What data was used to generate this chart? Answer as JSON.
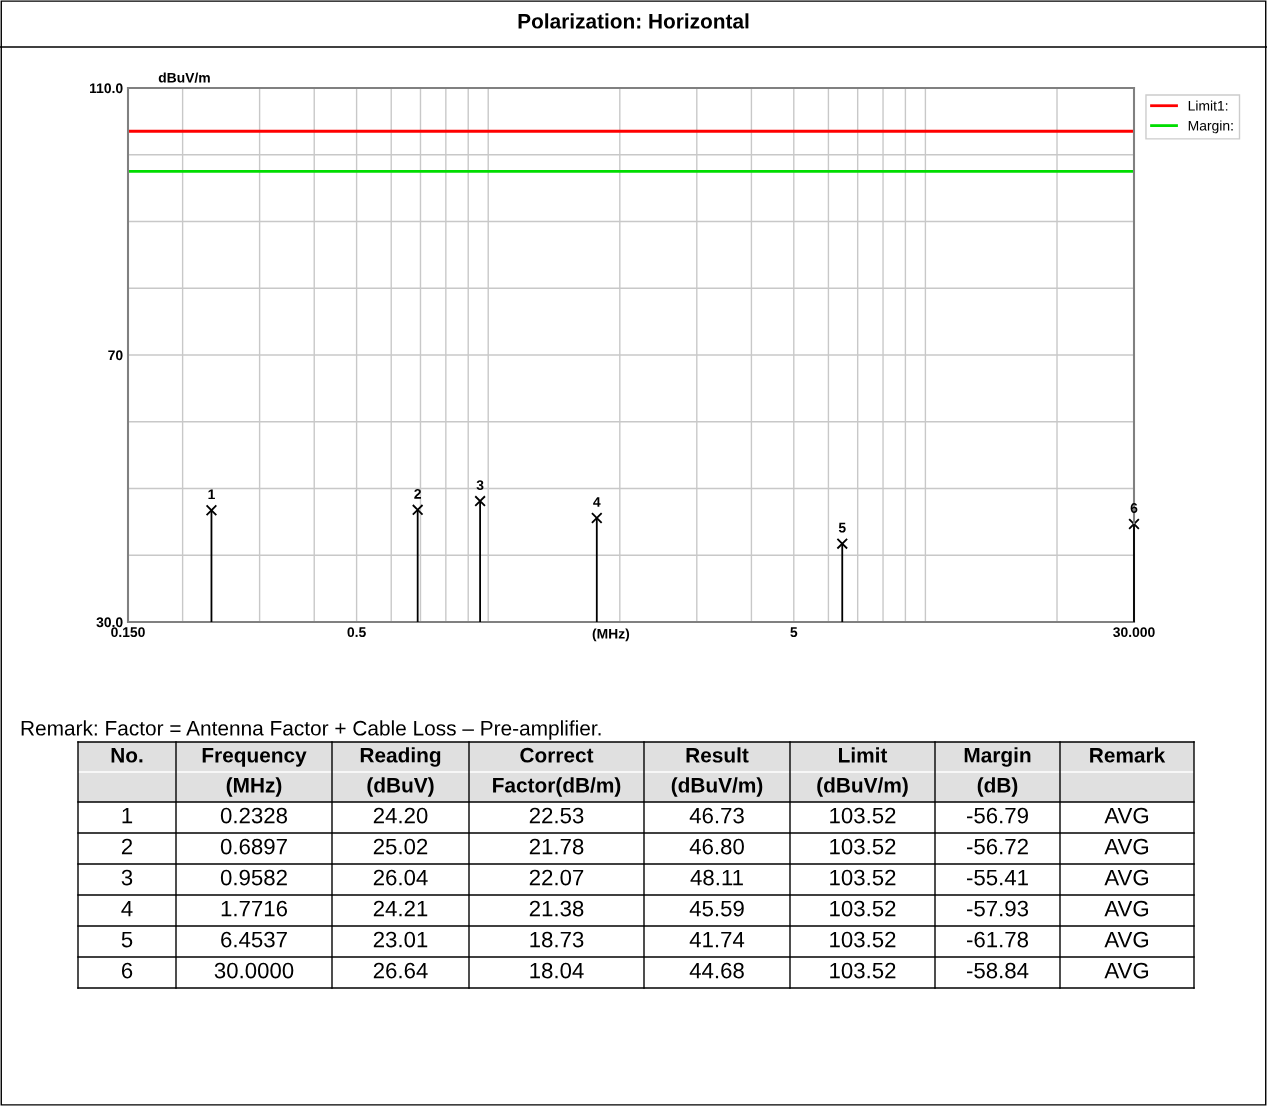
{
  "chart_data": {
    "type": "lollipop",
    "title": "Polarization: Horizontal",
    "ylabel": "dBuV/m",
    "xlabel": "(MHz)",
    "x": [
      0.2328,
      0.6897,
      0.9582,
      1.7716,
      6.4537,
      30.0
    ],
    "values": [
      46.73,
      46.8,
      48.11,
      45.59,
      41.74,
      44.68
    ],
    "color": "#000000",
    "marker": "cross",
    "log": "x",
    "xlim": [
      0.15,
      30
    ],
    "ylim": [
      30,
      110
    ],
    "xticks": [
      {
        "value": 0.15,
        "label": "0.150"
      },
      {
        "value": 0.2,
        "label": null
      },
      {
        "value": 0.3,
        "label": null
      },
      {
        "value": 0.4,
        "label": null
      },
      {
        "value": 0.5,
        "label": "0.5"
      },
      {
        "value": 0.6,
        "label": null
      },
      {
        "value": 0.7,
        "label": null
      },
      {
        "value": 0.8,
        "label": null
      },
      {
        "value": 0.9,
        "label": null
      },
      {
        "value": 1,
        "label": null
      },
      {
        "value": 2,
        "label": null
      },
      {
        "value": 3,
        "label": null
      },
      {
        "value": 4,
        "label": null
      },
      {
        "value": 5,
        "label": "5"
      },
      {
        "value": 6,
        "label": null
      },
      {
        "value": 7,
        "label": null
      },
      {
        "value": 8,
        "label": null
      },
      {
        "value": 9,
        "label": null
      },
      {
        "value": 10,
        "label": null
      },
      {
        "value": 20,
        "label": null
      },
      {
        "value": 30,
        "label": "30.000"
      }
    ],
    "yticks": [
      {
        "value": 30,
        "label": "30.0"
      },
      {
        "value": 40,
        "label": null
      },
      {
        "value": 50,
        "label": null
      },
      {
        "value": 60,
        "label": null
      },
      {
        "value": 70,
        "label": "70"
      },
      {
        "value": 80,
        "label": null
      },
      {
        "value": 90,
        "label": null
      },
      {
        "value": 100,
        "label": null
      },
      {
        "value": 110,
        "label": "110.0"
      }
    ],
    "grid": true,
    "legend": "top right",
    "ref_lines": [
      {
        "axis": "y",
        "value": 103.52,
        "label": "Limit1:",
        "color": "#ff0000"
      },
      {
        "axis": "y",
        "value": 97.5,
        "label": "Margin:",
        "color": "#00dd00"
      }
    ],
    "annotations": [
      {
        "text": "1",
        "x": 0.2328,
        "y": 46.73
      },
      {
        "text": "2",
        "x": 0.6897,
        "y": 46.8
      },
      {
        "text": "3",
        "x": 0.9582,
        "y": 48.11
      },
      {
        "text": "4",
        "x": 1.7716,
        "y": 45.59
      },
      {
        "text": "5",
        "x": 6.4537,
        "y": 41.74
      },
      {
        "text": "6",
        "x": 30.0,
        "y": 44.68
      },
      "Remark: Factor = Antenna Factor + Cable Loss – Pre-amplifier.",
      "No.",
      "Frequency\n(MHz)",
      "Reading\n(dBuV)",
      "Correct\nFactor(dB/m)",
      "Result\n(dBuV/m)",
      "Limit\n(dBuV/m)",
      "Margin\n(dB)",
      "Remark",
      "1",
      "0.2328",
      "24.20",
      "22.53",
      "46.73",
      "103.52",
      "-56.79",
      "AVG",
      "2",
      "0.6897",
      "25.02",
      "21.78",
      "46.80",
      "103.52",
      "-56.72",
      "AVG",
      "3",
      "0.9582",
      "26.04",
      "22.07",
      "48.11",
      "103.52",
      "-55.41",
      "AVG",
      "4",
      "1.7716",
      "24.21",
      "21.38",
      "45.59",
      "103.52",
      "-57.93",
      "AVG",
      "5",
      "6.4537",
      "23.01",
      "18.73",
      "41.74",
      "103.52",
      "-61.78",
      "AVG",
      "6",
      "30.0000",
      "26.64",
      "18.04",
      "44.68",
      "103.52",
      "-58.84",
      "AVG"
    ]
  }
}
